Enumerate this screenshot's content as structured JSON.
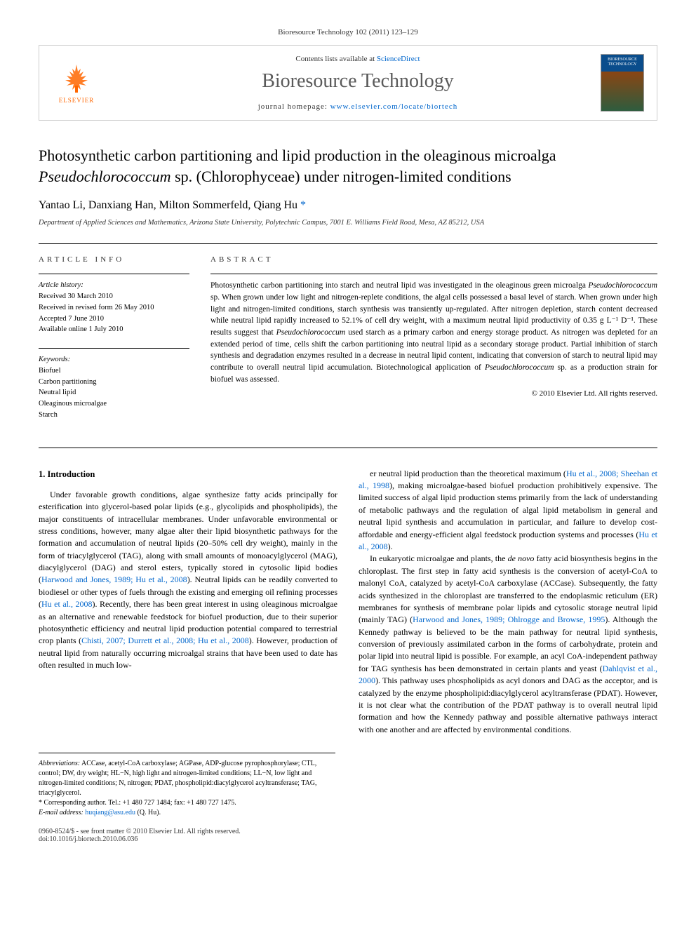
{
  "journal_ref": "Bioresource Technology 102 (2011) 123–129",
  "header": {
    "elsevier_label": "ELSEVIER",
    "contents_prefix": "Contents lists available at ",
    "contents_link": "ScienceDirect",
    "journal_title": "Bioresource Technology",
    "homepage_prefix": "journal homepage: ",
    "homepage_link": "www.elsevier.com/locate/biortech",
    "cover_title": "BIORESOURCE TECHNOLOGY"
  },
  "article": {
    "title_html": "Photosynthetic carbon partitioning and lipid production in the oleaginous microalga <em>Pseudochlorococcum</em> sp. (Chlorophyceae) under nitrogen-limited conditions",
    "authors_html": "Yantao Li, Danxiang Han, Milton Sommerfeld, Qiang Hu <span class='corr'>*</span>",
    "affiliation": "Department of Applied Sciences and Mathematics, Arizona State University, Polytechnic Campus, 7001 E. Williams Field Road, Mesa, AZ 85212, USA"
  },
  "info": {
    "label": "ARTICLE INFO",
    "history_heading": "Article history:",
    "history_lines": [
      "Received 30 March 2010",
      "Received in revised form 26 May 2010",
      "Accepted 7 June 2010",
      "Available online 1 July 2010"
    ],
    "keywords_heading": "Keywords:",
    "keywords": [
      "Biofuel",
      "Carbon partitioning",
      "Neutral lipid",
      "Oleaginous microalgae",
      "Starch"
    ]
  },
  "abstract": {
    "label": "ABSTRACT",
    "text_html": "Photosynthetic carbon partitioning into starch and neutral lipid was investigated in the oleaginous green microalga <em>Pseudochlorococcum</em> sp. When grown under low light and nitrogen-replete conditions, the algal cells possessed a basal level of starch. When grown under high light and nitrogen-limited conditions, starch synthesis was transiently up-regulated. After nitrogen depletion, starch content decreased while neutral lipid rapidly increased to 52.1% of cell dry weight, with a maximum neutral lipid productivity of 0.35 g L⁻¹ D⁻¹. These results suggest that <em>Pseudochlorococcum</em> used starch as a primary carbon and energy storage product. As nitrogen was depleted for an extended period of time, cells shift the carbon partitioning into neutral lipid as a secondary storage product. Partial inhibition of starch synthesis and degradation enzymes resulted in a decrease in neutral lipid content, indicating that conversion of starch to neutral lipid may contribute to overall neutral lipid accumulation. Biotechnological application of <em>Pseudochlorococcum</em> sp. as a production strain for biofuel was assessed.",
    "copyright": "© 2010 Elsevier Ltd. All rights reserved."
  },
  "body": {
    "heading": "1. Introduction",
    "left_html": "Under favorable growth conditions, algae synthesize fatty acids principally for esterification into glycerol-based polar lipids (e.g., glycolipids and phospholipids), the major constituents of intracellular membranes. Under unfavorable environmental or stress conditions, however, many algae alter their lipid biosynthetic pathways for the formation and accumulation of neutral lipids (20–50% cell dry weight), mainly in the form of triacylglycerol (TAG), along with small amounts of monoacylglycerol (MAG), diacylglycerol (DAG) and sterol esters, typically stored in cytosolic lipid bodies (<a href='#'>Harwood and Jones, 1989; Hu et al., 2008</a>). Neutral lipids can be readily converted to biodiesel or other types of fuels through the existing and emerging oil refining processes (<a href='#'>Hu et al., 2008</a>). Recently, there has been great interest in using oleaginous microalgae as an alternative and renewable feedstock for biofuel production, due to their superior photosynthetic efficiency and neutral lipid production potential compared to terrestrial crop plants (<a href='#'>Chisti, 2007; Durrett et al., 2008; Hu et al., 2008</a>). However, production of neutral lipid from naturally occurring microalgal strains that have been used to date has often resulted in much low-",
    "right_p1_html": "er neutral lipid production than the theoretical maximum (<a href='#'>Hu et al., 2008; Sheehan et al., 1998</a>), making microalgae-based biofuel production prohibitively expensive. The limited success of algal lipid production stems primarily from the lack of understanding of metabolic pathways and the regulation of algal lipid metabolism in general and neutral lipid synthesis and accumulation in particular, and failure to develop cost-affordable and energy-efficient algal feedstock production systems and processes (<a href='#'>Hu et al., 2008</a>).",
    "right_p2_html": "In eukaryotic microalgae and plants, the <em>de novo</em> fatty acid biosynthesis begins in the chloroplast. The first step in fatty acid synthesis is the conversion of acetyl-CoA to malonyl CoA, catalyzed by acetyl-CoA carboxylase (ACCase). Subsequently, the fatty acids synthesized in the chloroplast are transferred to the endoplasmic reticulum (ER) membranes for synthesis of membrane polar lipids and cytosolic storage neutral lipid (mainly TAG) (<a href='#'>Harwood and Jones, 1989; Ohlrogge and Browse, 1995</a>). Although the Kennedy pathway is believed to be the main pathway for neutral lipid synthesis, conversion of previously assimilated carbon in the forms of carbohydrate, protein and polar lipid into neutral lipid is possible. For example, an acyl CoA-independent pathway for TAG synthesis has been demonstrated in certain plants and yeast (<a href='#'>Dahlqvist et al., 2000</a>). This pathway uses phospholipids as acyl donors and DAG as the acceptor, and is catalyzed by the enzyme phospholipid:diacylglycerol acyltransferase (PDAT). However, it is not clear what the contribution of the PDAT pathway is to overall neutral lipid formation and how the Kennedy pathway and possible alternative pathways interact with one another and are affected by environmental conditions."
  },
  "footnotes": {
    "abbrev_html": "<em>Abbreviations:</em> ACCase, acetyl-CoA carboxylase; AGPase, ADP-glucose pyrophosphorylase; CTL, control; DW, dry weight; HL−N, high light and nitrogen-limited conditions; LL−N, low light and nitrogen-limited conditions; N, nitrogen; PDAT, phospholipid:diacylglycerol acyltransferase; TAG, triacylglycerol.",
    "corr_html": "* Corresponding author. Tel.: +1 480 727 1484; fax: +1 480 727 1475.",
    "email_prefix": "E-mail address: ",
    "email": "huqiang@asu.edu",
    "email_suffix": " (Q. Hu)."
  },
  "footer": {
    "left_line1": "0960-8524/$ - see front matter © 2010 Elsevier Ltd. All rights reserved.",
    "left_line2": "doi:10.1016/j.biortech.2010.06.036"
  },
  "colors": {
    "link": "#0066cc",
    "elsevier_orange": "#ff6600",
    "text": "#000000",
    "muted": "#333333",
    "border": "#cccccc"
  }
}
